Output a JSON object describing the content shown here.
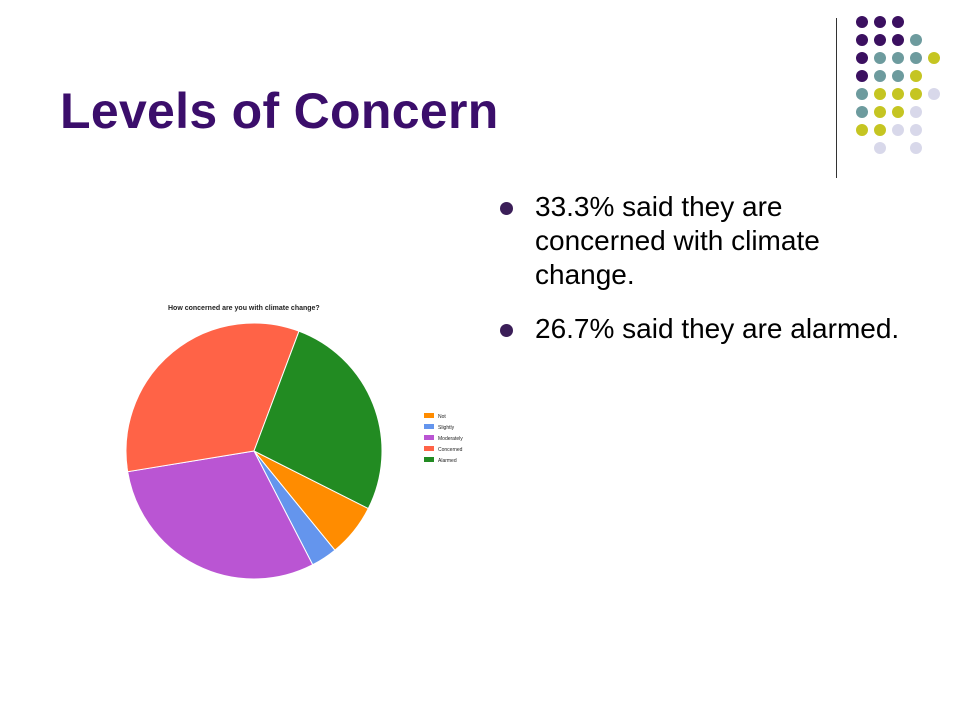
{
  "slide": {
    "title": "Levels of Concern",
    "bullets": [
      "33.3% said they are concerned with climate change.",
      "26.7% said they are alarmed."
    ]
  },
  "decoration": {
    "dot_colors": [
      "#3b1060",
      "#6d9b9e",
      "#c5c522",
      "#d8d8ea"
    ],
    "divider_color": "#333333"
  },
  "chart_data": {
    "type": "pie",
    "title": "How concerned are you with climate change?",
    "categories": [
      "Not",
      "Slightly",
      "Moderately",
      "Concerned",
      "Alarmed"
    ],
    "values": [
      6.7,
      3.3,
      30.0,
      33.3,
      26.7
    ],
    "colors": [
      "#ff8c00",
      "#6495ed",
      "#ba55d3",
      "#ff6347",
      "#228b22"
    ],
    "legend_position": "right"
  }
}
